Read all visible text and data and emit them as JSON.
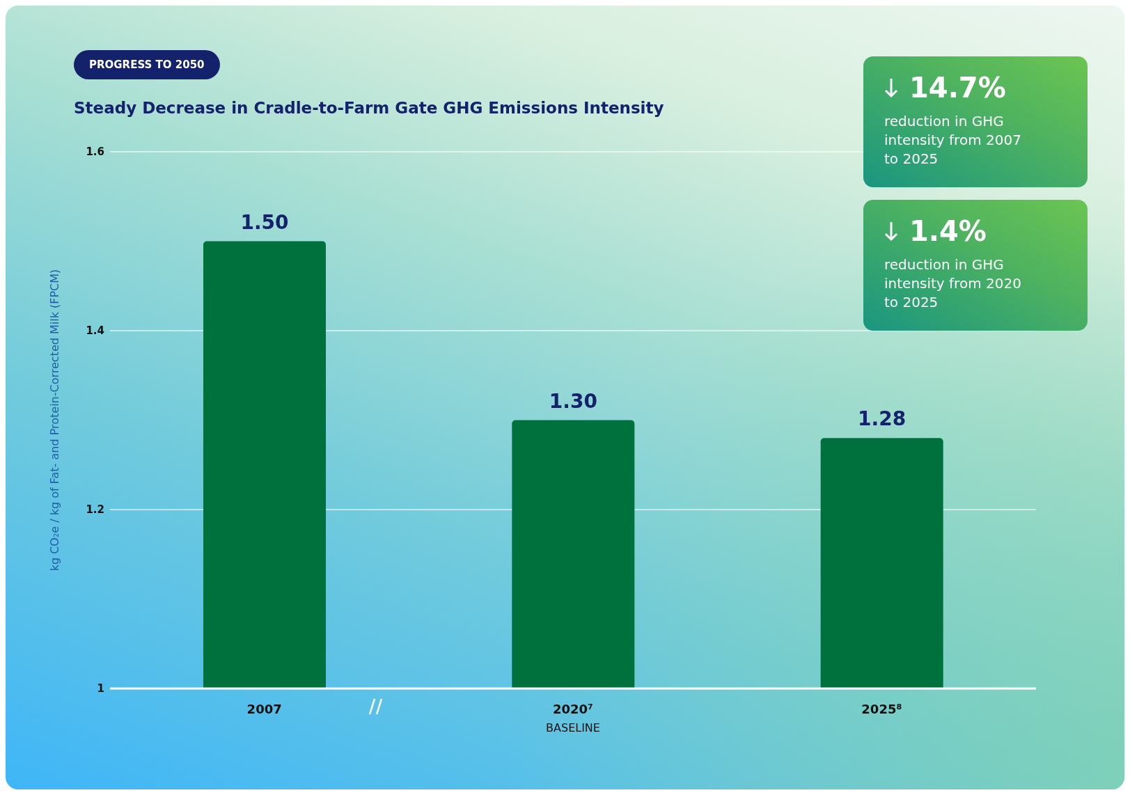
{
  "chart_data": {
    "type": "bar",
    "title": "Steady Decrease in Cradle-to-Farm Gate GHG Emissions Intensity",
    "ylabel": "kg CO₂e / kg of Fat- and Protein-Corrected Milk (FPCM)",
    "categories": [
      "2007",
      "2020⁷",
      "2025⁸"
    ],
    "values": [
      1.5,
      1.3,
      1.28
    ],
    "color": "#00713d",
    "value_labels": [
      "1.50",
      "1.30",
      "1.28"
    ],
    "ylim": [
      1,
      1.6
    ],
    "yticks": [
      1,
      1.2,
      1.4,
      1.6
    ],
    "grid": "y",
    "annotations": [
      "PROGRESS TO 2050",
      "BASELINE",
      "14.7%",
      "reduction in GHG intensity from 2007 to 2025",
      "1.4%",
      "reduction in GHG intensity from 2020 to 2025"
    ]
  }
}
